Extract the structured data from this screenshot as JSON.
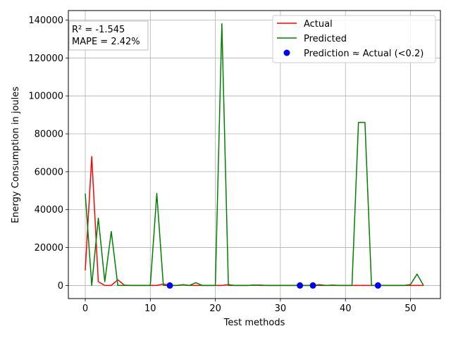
{
  "chart_data": {
    "type": "line",
    "title": "",
    "xlabel": "Test methods",
    "ylabel": "Energy Consumption in joules",
    "xlim": [
      -2.6,
      54.6
    ],
    "ylim": [
      -6900,
      145000
    ],
    "xticks": [
      0,
      10,
      20,
      30,
      40,
      50
    ],
    "yticks": [
      0,
      20000,
      40000,
      60000,
      80000,
      100000,
      120000,
      140000
    ],
    "grid": true,
    "legend_position": "top-right",
    "annotation": {
      "r2": "R² = -1.545",
      "mape": "MAPE = 2.42%"
    },
    "x": [
      0,
      1,
      2,
      3,
      4,
      5,
      6,
      7,
      8,
      9,
      10,
      11,
      12,
      13,
      14,
      15,
      16,
      17,
      18,
      19,
      20,
      21,
      22,
      23,
      24,
      25,
      26,
      27,
      28,
      29,
      30,
      31,
      32,
      33,
      34,
      35,
      36,
      37,
      38,
      39,
      40,
      41,
      42,
      43,
      44,
      45,
      46,
      47,
      48,
      49,
      50,
      51,
      52
    ],
    "series": [
      {
        "name": "Actual",
        "color": "#ff0000",
        "values": [
          8000,
          68000,
          2000,
          0,
          0,
          3000,
          200,
          0,
          0,
          0,
          0,
          0,
          800,
          0,
          0,
          300,
          0,
          0,
          0,
          0,
          0,
          0,
          400,
          0,
          0,
          0,
          200,
          0,
          0,
          0,
          0,
          0,
          0,
          0,
          0,
          0,
          400,
          0,
          0,
          0,
          0,
          0,
          0,
          0,
          0,
          0,
          0,
          0,
          0,
          0,
          0,
          0,
          0
        ]
      },
      {
        "name": "Predicted",
        "color": "#008000",
        "values": [
          48500,
          0,
          35500,
          2000,
          28500,
          0,
          0,
          0,
          0,
          0,
          0,
          48500,
          0,
          0,
          0,
          400,
          0,
          1500,
          0,
          0,
          0,
          138000,
          0,
          0,
          0,
          0,
          200,
          200,
          0,
          0,
          0,
          0,
          0,
          0,
          0,
          0,
          0,
          0,
          200,
          0,
          0,
          0,
          86000,
          86000,
          0,
          0,
          0,
          0,
          0,
          0,
          500,
          6000,
          0
        ]
      }
    ],
    "matches": {
      "name": "Prediction ≈ Actual (<0.2)",
      "color": "#0000ff",
      "x": [
        13,
        33,
        35,
        45
      ],
      "y": [
        0,
        0,
        0,
        0
      ]
    }
  }
}
